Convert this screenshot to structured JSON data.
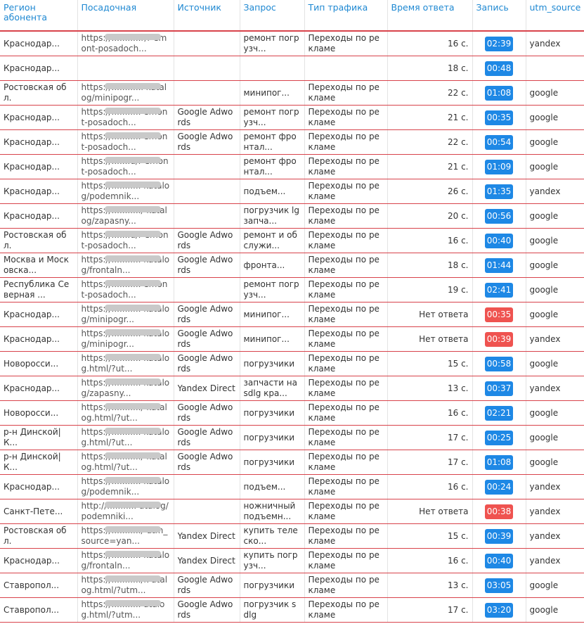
{
  "colors": {
    "header_text": "#1e88d2",
    "row_divider": "#d8434b",
    "recording_ok": "#1e88e5",
    "recording_missed": "#ef5350"
  },
  "columns": [
    "Регион абонента",
    "Посадочная",
    "Источник",
    "Запрос",
    "Тип трафика",
    "Время ответа",
    "Запись",
    "utm_source"
  ],
  "rows": [
    {
      "region": "Краснодар...",
      "url": "https://...........r/r emont-posadoch...",
      "source": "",
      "query": "ремонт погрузч...",
      "traffic": "Переходы по рекламе",
      "time": "16 с.",
      "record": "02:39",
      "status": "ok",
      "utm": "yandex"
    },
    {
      "region": "Краснодар...",
      "url": "",
      "source": "",
      "query": "",
      "traffic": "",
      "time": "18 с.",
      "record": "00:48",
      "status": "ok",
      "utm": ""
    },
    {
      "region": "Ростовская обл.",
      "url": "https://...........l katalog/minipogr...",
      "source": "",
      "query": "минипог...",
      "traffic": "Переходы по рекламе",
      "time": "22 с.",
      "record": "01:08",
      "status": "ok",
      "utm": "google"
    },
    {
      "region": "Краснодар...",
      "url": "https://........... emont-posadoch...",
      "source": "Google Adwords",
      "query": "ремонт погрузч...",
      "traffic": "Переходы по рекламе",
      "time": "21 с.",
      "record": "00:35",
      "status": "ok",
      "utm": "google"
    },
    {
      "region": "Краснодар...",
      "url": "https://........... emont-posadoch...",
      "source": "Google Adwords",
      "query": "ремонт фронтал...",
      "traffic": "Переходы по рекламе",
      "time": "22 с.",
      "record": "00:54",
      "status": "ok",
      "utm": "google"
    },
    {
      "region": "Краснодар...",
      "url": "https://.......u/r emont-posadoch...",
      "source": "",
      "query": "ремонт фронтал...",
      "traffic": "Переходы по рекламе",
      "time": "21 с.",
      "record": "01:09",
      "status": "ok",
      "utm": "google"
    },
    {
      "region": "Краснодар...",
      "url": "https://........... katalog/podemnik...",
      "source": "",
      "query": "подъем...",
      "traffic": "Переходы по рекламе",
      "time": "26 с.",
      "record": "01:35",
      "status": "ok",
      "utm": "yandex"
    },
    {
      "region": "Краснодар...",
      "url": "https://.........../ katalog/zapasny...",
      "source": "",
      "query": "погрузчик lg запча...",
      "traffic": "Переходы по рекламе",
      "time": "20 с.",
      "record": "00:56",
      "status": "ok",
      "utm": "google"
    },
    {
      "region": "Ростовская обл.",
      "url": "https://.......u/r emont-posadoch...",
      "source": "Google Adwords",
      "query": "ремонт и обслужи...",
      "traffic": "Переходы по рекламе",
      "time": "16 с.",
      "record": "00:40",
      "status": "ok",
      "utm": "google"
    },
    {
      "region": "Москва и Московска...",
      "url": "https://........... katalog/frontaln...",
      "source": "Google Adwords",
      "query": "фронта...",
      "traffic": "Переходы по рекламе",
      "time": "18 с.",
      "record": "01:44",
      "status": "ok",
      "utm": "google"
    },
    {
      "region": "Республика Северная ...",
      "url": "https://........... emont-posadoch...",
      "source": "",
      "query": "ремонт погрузч...",
      "traffic": "Переходы по рекламе",
      "time": "19 с.",
      "record": "02:41",
      "status": "ok",
      "utm": "google"
    },
    {
      "region": "Краснодар...",
      "url": "https://........... katalog/minipogr...",
      "source": "Google Adwords",
      "query": "минипог...",
      "traffic": "Переходы по рекламе",
      "time": "Нет ответа",
      "record": "00:35",
      "status": "missed",
      "utm": "google"
    },
    {
      "region": "Краснодар...",
      "url": "https://........... katalog/minipogr...",
      "source": "Google Adwords",
      "query": "минипог...",
      "traffic": "Переходы по рекламе",
      "time": "Нет ответа",
      "record": "00:39",
      "status": "missed",
      "utm": "yandex"
    },
    {
      "region": "Новоросси...",
      "url": "https://........... katalog.html/?ut...",
      "source": "Google Adwords",
      "query": "погрузчики",
      "traffic": "Переходы по рекламе",
      "time": "15 с.",
      "record": "00:58",
      "status": "ok",
      "utm": "google"
    },
    {
      "region": "Краснодар...",
      "url": "https://........... katalog/zapasny...",
      "source": "Yandex Direct",
      "query": "запчасти на sdlg кра...",
      "traffic": "Переходы по рекламе",
      "time": "13 с.",
      "record": "00:37",
      "status": "ok",
      "utm": "yandex"
    },
    {
      "region": "Новоросси...",
      "url": "https://.........../ katalog.html/?ut...",
      "source": "Google Adwords",
      "query": "погрузчики",
      "traffic": "Переходы по рекламе",
      "time": "16 с.",
      "record": "02:21",
      "status": "ok",
      "utm": "google"
    },
    {
      "region": "р-н Динской|К...",
      "url": "https://........... katalog.html/?ut...",
      "source": "Google Adwords",
      "query": "погрузчики",
      "traffic": "Переходы по рекламе",
      "time": "17 с.",
      "record": "00:25",
      "status": "ok",
      "utm": "google"
    },
    {
      "region": "р-н Динской|К...",
      "url": "https://.........../ katalog.html/?ut...",
      "source": "Google Adwords",
      "query": "погрузчики",
      "traffic": "Переходы по рекламе",
      "time": "17 с.",
      "record": "01:08",
      "status": "ok",
      "utm": "google"
    },
    {
      "region": "Краснодар...",
      "url": "https://........... katalog/podemnik...",
      "source": "",
      "query": "подъем...",
      "traffic": "Переходы по рекламе",
      "time": "16 с.",
      "record": "00:24",
      "status": "ok",
      "utm": "yandex"
    },
    {
      "region": "Санкт-Пете...",
      "url": "http://........... atalog/podemniki...",
      "source": "",
      "query": "ножничный подъемн...",
      "traffic": "Переходы по рекламе",
      "time": "Нет ответа",
      "record": "00:38",
      "status": "missed",
      "utm": "yandex"
    },
    {
      "region": "Ростовская обл.",
      "url": "https://.........../ utm_source=yan...",
      "source": "Yandex Direct",
      "query": "купить телеско...",
      "traffic": "Переходы по рекламе",
      "time": "15 с.",
      "record": "00:39",
      "status": "ok",
      "utm": "yandex"
    },
    {
      "region": "Краснодар...",
      "url": "https://........... katalog/frontaln...",
      "source": "Yandex Direct",
      "query": "купить погрузч...",
      "traffic": "Переходы по рекламе",
      "time": "16 с.",
      "record": "00:40",
      "status": "ok",
      "utm": "yandex"
    },
    {
      "region": "Ставропол...",
      "url": "https://.........../k atalog.html/?utm...",
      "source": "Google Adwords",
      "query": "погрузчики",
      "traffic": "Переходы по рекламе",
      "time": "13 с.",
      "record": "03:05",
      "status": "ok",
      "utm": "google"
    },
    {
      "region": "Ставропол...",
      "url": "https://........... atalog.html/?utm...",
      "source": "Google Adwords",
      "query": "погрузчик sdlg",
      "traffic": "Переходы по рекламе",
      "time": "17 с.",
      "record": "03:20",
      "status": "ok",
      "utm": "google"
    }
  ]
}
